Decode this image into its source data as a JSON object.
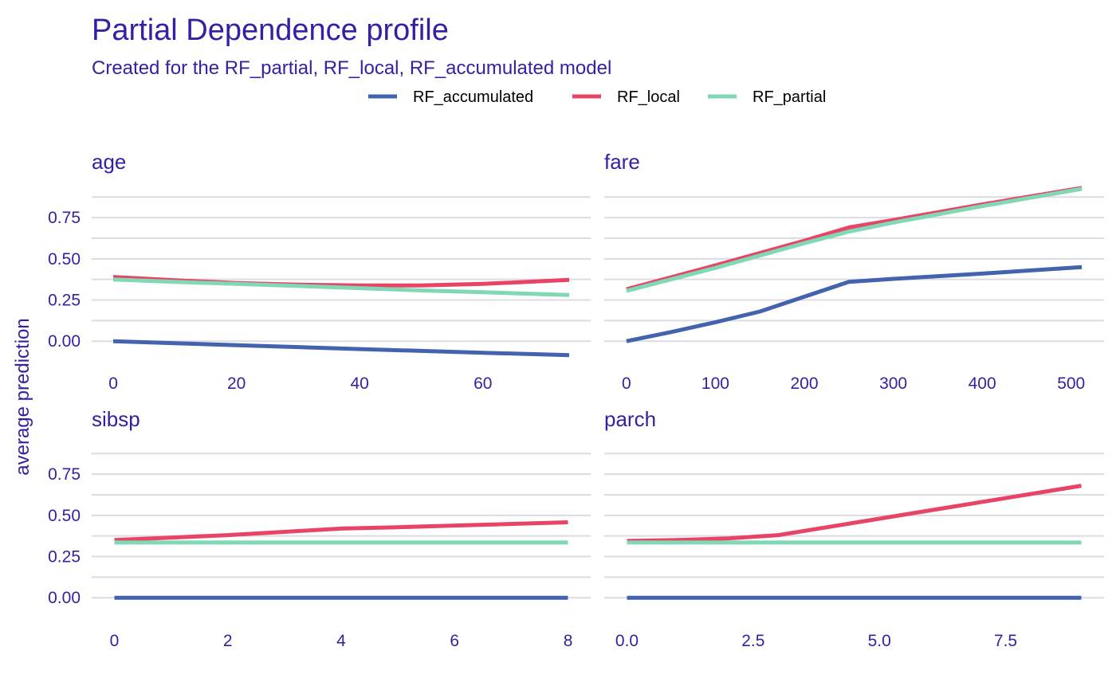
{
  "chart_data": {
    "type": "line",
    "title": "Partial Dependence profile",
    "subtitle": "Created for the RF_partial, RF_local, RF_accumulated model",
    "ylabel": "average prediction",
    "legend_position": "top",
    "grid": true,
    "colors": {
      "text": "#371ea3",
      "grid": "#dcdce1",
      "RF_accumulated": "#4363af",
      "RF_local": "#e74466",
      "RF_partial": "#80d8b4"
    },
    "legend": [
      "RF_accumulated",
      "RF_local",
      "RF_partial"
    ],
    "ylim": [
      -0.12,
      0.92
    ],
    "yticks": [
      0.0,
      0.25,
      0.5,
      0.75
    ],
    "ytick_labels": [
      "0.00",
      "0.25",
      "0.50",
      "0.75"
    ],
    "panels": [
      {
        "id": "age",
        "title": "age",
        "xlim": [
          -3.5,
          77.5
        ],
        "xticks": [
          0,
          20,
          40,
          60
        ],
        "xtick_labels": [
          "0",
          "20",
          "40",
          "60"
        ],
        "series": [
          {
            "name": "RF_accumulated",
            "x": [
              0,
              10,
              20,
              30,
              40,
              50,
              60,
              74
            ],
            "y": [
              0.0,
              -0.012,
              -0.024,
              -0.036,
              -0.048,
              -0.059,
              -0.07,
              -0.085
            ]
          },
          {
            "name": "RF_local",
            "x": [
              0,
              10,
              20,
              30,
              40,
              50,
              60,
              74
            ],
            "y": [
              0.39,
              0.37,
              0.353,
              0.343,
              0.338,
              0.338,
              0.348,
              0.372
            ]
          },
          {
            "name": "RF_partial",
            "x": [
              0,
              10,
              20,
              30,
              40,
              50,
              60,
              74
            ],
            "y": [
              0.375,
              0.36,
              0.348,
              0.335,
              0.322,
              0.308,
              0.297,
              0.28
            ]
          }
        ]
      },
      {
        "id": "fare",
        "title": "fare",
        "xlim": [
          -25,
          537
        ],
        "xticks": [
          0,
          100,
          200,
          300,
          400,
          500
        ],
        "xtick_labels": [
          "0",
          "100",
          "200",
          "300",
          "400",
          "500"
        ],
        "series": [
          {
            "name": "RF_accumulated",
            "x": [
              0,
              50,
              100,
              150,
              200,
              250,
              300,
              400,
              512
            ],
            "y": [
              0.0,
              0.055,
              0.115,
              0.18,
              0.27,
              0.36,
              0.378,
              0.41,
              0.45
            ]
          },
          {
            "name": "RF_local",
            "x": [
              0,
              100,
              200,
              250,
              300,
              400,
              512
            ],
            "y": [
              0.315,
              0.46,
              0.61,
              0.69,
              0.735,
              0.83,
              0.93
            ]
          },
          {
            "name": "RF_partial",
            "x": [
              0,
              100,
              200,
              250,
              300,
              400,
              512
            ],
            "y": [
              0.305,
              0.445,
              0.595,
              0.665,
              0.72,
              0.82,
              0.925
            ]
          }
        ]
      },
      {
        "id": "sibsp",
        "title": "sibsp",
        "xlim": [
          -0.4,
          8.4
        ],
        "xticks": [
          0,
          2,
          4,
          6,
          8
        ],
        "xtick_labels": [
          "0",
          "2",
          "4",
          "6",
          "8"
        ],
        "series": [
          {
            "name": "RF_accumulated",
            "x": [
              0,
              8
            ],
            "y": [
              0.0,
              0.0
            ]
          },
          {
            "name": "RF_local",
            "x": [
              0,
              1,
              2,
              3,
              4,
              5,
              6,
              8
            ],
            "y": [
              0.35,
              0.365,
              0.38,
              0.4,
              0.42,
              0.428,
              0.438,
              0.458
            ]
          },
          {
            "name": "RF_partial",
            "x": [
              0,
              8
            ],
            "y": [
              0.335,
              0.335
            ]
          }
        ]
      },
      {
        "id": "parch",
        "title": "parch",
        "xlim": [
          -0.45,
          9.45
        ],
        "xticks": [
          0,
          2.5,
          5,
          7.5
        ],
        "xtick_labels": [
          "0.0",
          "2.5",
          "5.0",
          "7.5"
        ],
        "series": [
          {
            "name": "RF_accumulated",
            "x": [
              0,
              9
            ],
            "y": [
              0.0,
              0.0
            ]
          },
          {
            "name": "RF_local",
            "x": [
              0,
              1,
              2,
              3,
              4,
              5,
              6,
              7,
              8,
              9
            ],
            "y": [
              0.345,
              0.35,
              0.36,
              0.38,
              0.43,
              0.48,
              0.53,
              0.58,
              0.63,
              0.68
            ]
          },
          {
            "name": "RF_partial",
            "x": [
              0,
              9
            ],
            "y": [
              0.335,
              0.335
            ]
          }
        ]
      }
    ]
  }
}
